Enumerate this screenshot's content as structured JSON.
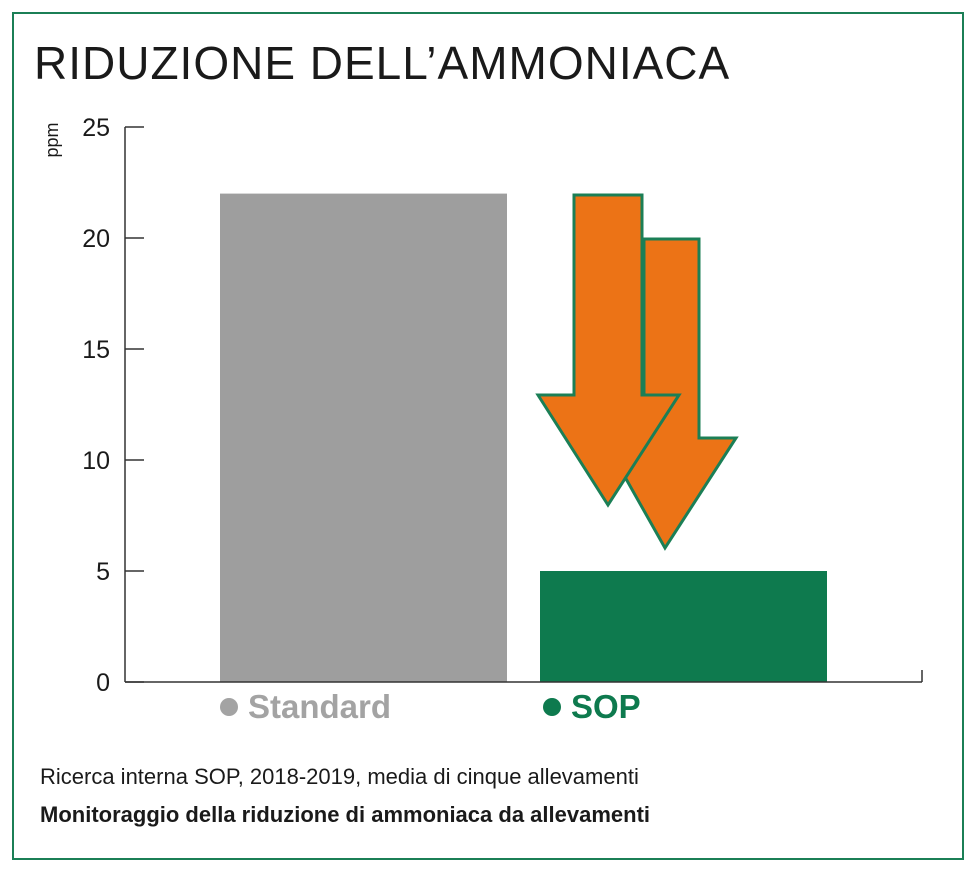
{
  "title": "RIDUZIONE DELL’AMMONIACA",
  "chart_data": {
    "type": "bar",
    "title": "RIDUZIONE DELL’AMMONIACA",
    "ylabel": "ppm",
    "xlabel": "",
    "ylim": [
      0,
      25
    ],
    "yticks": [
      0,
      5,
      10,
      15,
      20,
      25
    ],
    "categories": [
      "Standard",
      "SOP"
    ],
    "values": [
      22,
      5
    ],
    "colors": [
      "#9e9e9e",
      "#0e7a4e"
    ],
    "grid": false,
    "legend": "bottom"
  },
  "legend": [
    {
      "label": "Standard",
      "color": "#a3a3a3"
    },
    {
      "label": "SOP",
      "color": "#0e7a4e"
    }
  ],
  "arrows": {
    "fill": "#ec7316",
    "stroke": "#1b7f56",
    "icon": "down-arrow-icon"
  },
  "caption": {
    "line1": "Ricerca interna SOP, 2018-2019, media di cinque allevamenti",
    "line2": "Monitoraggio della riduzione di ammoniaca da allevamenti"
  },
  "frame_color": "#1b7f56"
}
